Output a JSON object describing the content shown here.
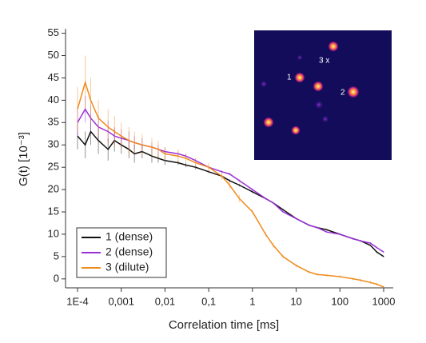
{
  "chart_data": {
    "type": "line",
    "xlabel": "Correlation time [ms]",
    "ylabel": "G(t) [10⁻³]",
    "xscale": "log",
    "xlim": [
      0.0001,
      1000
    ],
    "ylim": [
      -2,
      56
    ],
    "xticks": [
      {
        "value": 0.0001,
        "label": "1E-4"
      },
      {
        "value": 0.001,
        "label": "0,001"
      },
      {
        "value": 0.01,
        "label": "0,01"
      },
      {
        "value": 0.1,
        "label": "0,1"
      },
      1,
      10,
      100,
      1000
    ],
    "yticks": [
      0,
      5,
      10,
      15,
      20,
      25,
      30,
      35,
      40,
      45,
      50,
      55
    ],
    "legend": "lower left",
    "x": [
      0.0001,
      0.00015,
      0.0002,
      0.0003,
      0.0005,
      0.0007,
      0.001,
      0.0015,
      0.002,
      0.003,
      0.005,
      0.007,
      0.01,
      0.02,
      0.03,
      0.05,
      0.1,
      0.2,
      0.3,
      0.5,
      1,
      2,
      3,
      5,
      10,
      20,
      30,
      50,
      100,
      200,
      300,
      500,
      700,
      1000
    ],
    "series": [
      {
        "name": "1 (dense)",
        "color": "#111111",
        "values": [
          32,
          30,
          33,
          31,
          29,
          31,
          30,
          29,
          28,
          28.5,
          27.5,
          27,
          26.5,
          26,
          25.5,
          25,
          24,
          23,
          22,
          21,
          19.5,
          18,
          17,
          15.5,
          13.5,
          12,
          11.5,
          11,
          10,
          9,
          8.5,
          7.5,
          6,
          5
        ],
        "errors": [
          3,
          3,
          3,
          3,
          2.5,
          2.5,
          2,
          2,
          2,
          1.5,
          1.5,
          1,
          1,
          0.5,
          0.5,
          0.5,
          0.3,
          0.3,
          0.3,
          0.3,
          0.3,
          0.2,
          0.2,
          0.2,
          0.2,
          0.2,
          0.2,
          0.2,
          0.2,
          0.2,
          0.2,
          0.2,
          0.2,
          0.2
        ]
      },
      {
        "name": "2 (dense)",
        "color": "#9b30d9",
        "values": [
          35,
          38,
          36,
          34,
          33,
          32,
          31.5,
          31,
          30.5,
          30,
          29.5,
          29,
          28.5,
          28,
          27.5,
          26.5,
          25,
          24,
          23.5,
          22,
          20,
          18,
          17,
          15,
          13.5,
          12,
          11.5,
          10.5,
          10,
          9,
          8.5,
          8,
          7,
          6
        ],
        "errors": [
          3,
          3,
          3,
          2.5,
          2.5,
          2,
          2,
          2,
          1.5,
          1.5,
          1,
          1,
          1,
          0.5,
          0.5,
          0.5,
          0.3,
          0.3,
          0.3,
          0.3,
          0.3,
          0.2,
          0.2,
          0.2,
          0.2,
          0.2,
          0.2,
          0.2,
          0.2,
          0.2,
          0.2,
          0.2,
          0.2,
          0.2
        ]
      },
      {
        "name": "3 (dilute)",
        "color": "#f08a1c",
        "values": [
          38,
          44,
          40,
          36,
          34,
          33,
          32,
          31,
          30.5,
          30,
          29.5,
          29,
          28,
          27.5,
          27,
          26,
          25,
          23,
          21,
          18,
          15,
          10,
          7.5,
          5,
          3,
          1.5,
          1,
          0.8,
          0.5,
          0,
          -0.3,
          -0.8,
          -1.2,
          -1.8
        ],
        "errors": [
          5,
          6,
          5,
          4,
          4,
          3.5,
          3,
          3,
          2.5,
          2.5,
          2,
          2,
          1.5,
          1.5,
          1,
          1,
          1,
          0.8,
          0.8,
          0.8,
          0.6,
          0.5,
          0.5,
          0.4,
          0.4,
          0.3,
          0.3,
          0.3,
          0.3,
          0.3,
          0.3,
          0.3,
          0.3,
          0.3
        ]
      }
    ],
    "inset_labels": [
      "1",
      "2",
      "3 x"
    ]
  }
}
